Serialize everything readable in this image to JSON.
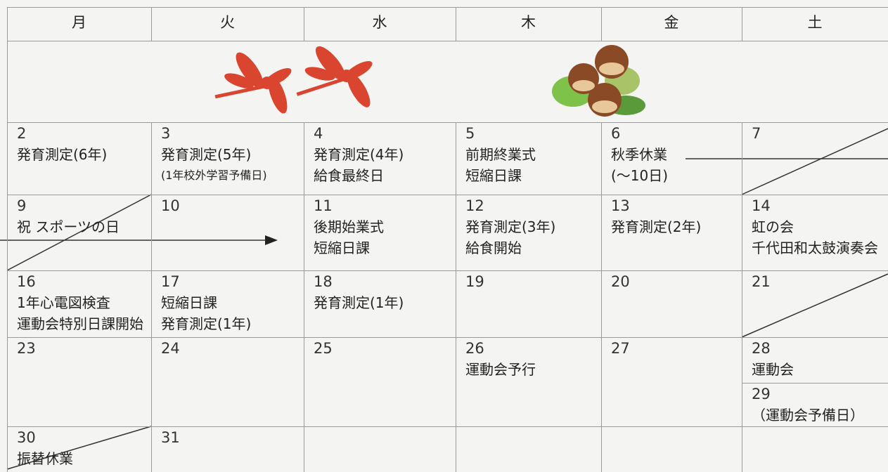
{
  "header": {
    "days": [
      "月",
      "火",
      "水",
      "木",
      "金",
      "土"
    ]
  },
  "weeks": [
    [
      {
        "date": "2",
        "lines": [
          "発育測定(6年)"
        ]
      },
      {
        "date": "3",
        "lines": [
          "発育測定(5年)",
          "(1年校外学習予備日)"
        ]
      },
      {
        "date": "4",
        "lines": [
          "発育測定(4年)",
          "給食最終日"
        ]
      },
      {
        "date": "5",
        "lines": [
          "前期終業式",
          "短縮日課"
        ]
      },
      {
        "date": "6",
        "lines": [
          "秋季休業",
          "(～10日)"
        ]
      },
      {
        "date": "7",
        "lines": []
      }
    ],
    [
      {
        "date": "9",
        "lines": [
          "祝 スポーツの日"
        ]
      },
      {
        "date": "10",
        "lines": []
      },
      {
        "date": "11",
        "lines": [
          "後期始業式",
          "短縮日課"
        ]
      },
      {
        "date": "12",
        "lines": [
          "発育測定(3年)",
          "給食開始"
        ]
      },
      {
        "date": "13",
        "lines": [
          "発育測定(2年)"
        ]
      },
      {
        "date": "14",
        "lines": [
          "虹の会",
          "千代田和太鼓演奏会"
        ]
      }
    ],
    [
      {
        "date": "16",
        "lines": [
          "1年心電図検査",
          "運動会特別日課開始"
        ]
      },
      {
        "date": "17",
        "lines": [
          "短縮日課",
          "発育測定(1年)"
        ]
      },
      {
        "date": "18",
        "lines": [
          "発育測定(1年)"
        ]
      },
      {
        "date": "19",
        "lines": []
      },
      {
        "date": "20",
        "lines": []
      },
      {
        "date": "21",
        "lines": []
      }
    ],
    [
      {
        "date": "23",
        "lines": []
      },
      {
        "date": "24",
        "lines": []
      },
      {
        "date": "25",
        "lines": []
      },
      {
        "date": "26",
        "lines": [
          "運動会予行"
        ]
      },
      {
        "date": "27",
        "lines": []
      },
      {
        "date": "28",
        "lines": [
          "運動会"
        ],
        "extra": {
          "date": "29",
          "lines": [
            "（運動会予備日）"
          ]
        }
      }
    ],
    [
      {
        "date": "30",
        "lines": [
          "振替休業"
        ]
      },
      {
        "date": "31",
        "lines": []
      },
      null,
      null,
      null,
      null
    ]
  ]
}
